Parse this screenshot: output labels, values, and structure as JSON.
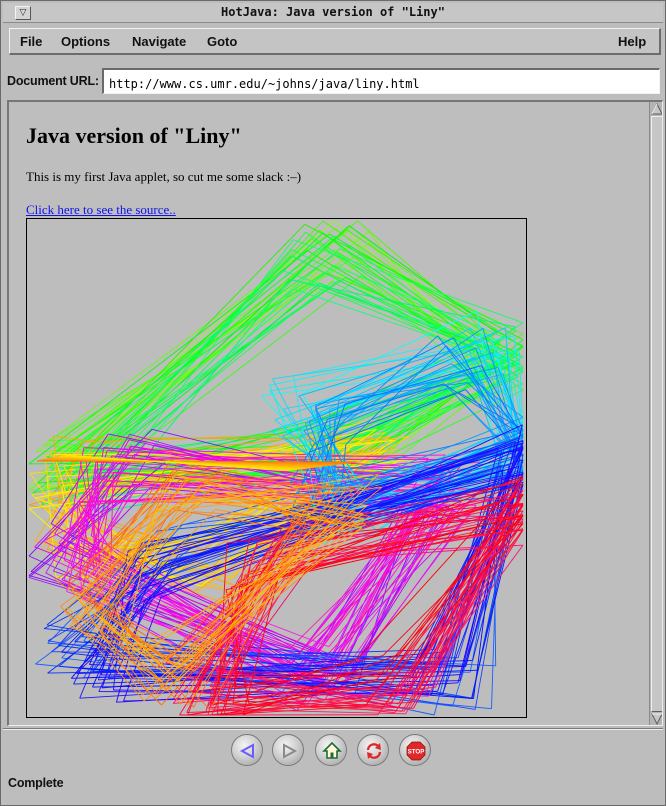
{
  "window": {
    "title": "HotJava: Java version of \"Liny\""
  },
  "menubar": {
    "items": [
      "File",
      "Options",
      "Navigate",
      "Goto"
    ],
    "help": "Help"
  },
  "url_bar": {
    "label": "Document URL:",
    "value": "http://www.cs.umr.edu/~johns/java/liny.html"
  },
  "document": {
    "heading": "Java version of \"Liny\"",
    "paragraph": "This is my first Java applet, so cut me some slack :–)",
    "link": "Click here to see the source.."
  },
  "toolbar": {
    "buttons": [
      {
        "name": "back",
        "icon": "back-arrow-icon",
        "color": "#6a5cff"
      },
      {
        "name": "forward",
        "icon": "forward-arrow-icon",
        "color": "#8a8a8a"
      },
      {
        "name": "home",
        "icon": "home-icon",
        "color": "#1e6b3a"
      },
      {
        "name": "reload",
        "icon": "reload-icon",
        "color": "#e0282a"
      },
      {
        "name": "stop",
        "icon": "stop-icon",
        "color": "#e0282a",
        "label": "STOP"
      }
    ]
  },
  "status": {
    "text": "Complete"
  }
}
